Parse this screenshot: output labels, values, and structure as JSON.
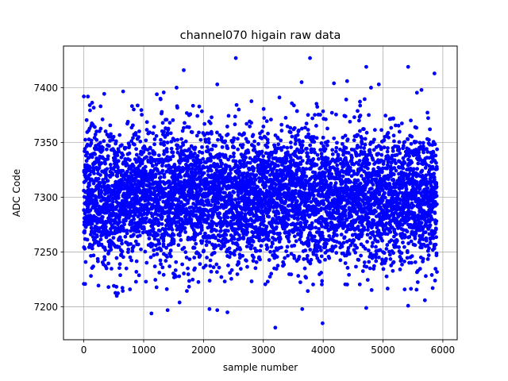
{
  "chart_data": {
    "type": "scatter",
    "title": "channel070 higain raw data",
    "xlabel": "sample number",
    "ylabel": "ADC Code",
    "xlim": [
      -340,
      6240
    ],
    "ylim": [
      7170,
      7438
    ],
    "xticks": [
      "0",
      "1000",
      "2000",
      "3000",
      "4000",
      "5000",
      "6000"
    ],
    "xtick_values": [
      0,
      1000,
      2000,
      3000,
      4000,
      5000,
      6000
    ],
    "yticks": [
      "7200",
      "7250",
      "7300",
      "7350",
      "7400"
    ],
    "ytick_values": [
      7200,
      7250,
      7300,
      7350,
      7400
    ],
    "grid": true,
    "legend": "none",
    "marker_color": "#0000ff",
    "series": [
      {
        "n_samples": 5904,
        "x_range": [
          0,
          5903
        ],
        "typical_center": 7300,
        "typical_spread": 30,
        "points": [
          {
            "x": 0,
            "y": 7392
          },
          {
            "x": 100,
            "y": 7384
          },
          {
            "x": 280,
            "y": 7383
          },
          {
            "x": 1220,
            "y": 7394
          },
          {
            "x": 1280,
            "y": 7390
          },
          {
            "x": 1550,
            "y": 7400
          },
          {
            "x": 1670,
            "y": 7416
          },
          {
            "x": 2230,
            "y": 7403
          },
          {
            "x": 2540,
            "y": 7427
          },
          {
            "x": 3640,
            "y": 7405
          },
          {
            "x": 3780,
            "y": 7427
          },
          {
            "x": 4180,
            "y": 7404
          },
          {
            "x": 4400,
            "y": 7406
          },
          {
            "x": 4720,
            "y": 7419
          },
          {
            "x": 4800,
            "y": 7400
          },
          {
            "x": 4930,
            "y": 7403
          },
          {
            "x": 5420,
            "y": 7419
          },
          {
            "x": 5860,
            "y": 7413
          },
          {
            "x": 0,
            "y": 7221
          },
          {
            "x": 550,
            "y": 7210
          },
          {
            "x": 1130,
            "y": 7194
          },
          {
            "x": 1400,
            "y": 7197
          },
          {
            "x": 1600,
            "y": 7204
          },
          {
            "x": 2100,
            "y": 7198
          },
          {
            "x": 2230,
            "y": 7197
          },
          {
            "x": 2400,
            "y": 7195
          },
          {
            "x": 3200,
            "y": 7181
          },
          {
            "x": 3650,
            "y": 7198
          },
          {
            "x": 3990,
            "y": 7185
          },
          {
            "x": 4720,
            "y": 7199
          },
          {
            "x": 5420,
            "y": 7201
          },
          {
            "x": 5700,
            "y": 7206
          },
          {
            "x": 5870,
            "y": 7224
          }
        ]
      }
    ]
  }
}
